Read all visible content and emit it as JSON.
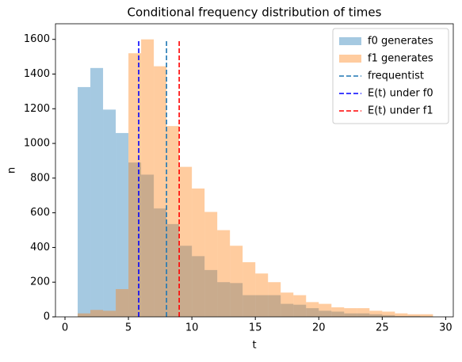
{
  "chart_data": {
    "type": "histogram",
    "title": "Conditional frequency distribution of times",
    "x_label": "t",
    "y_label": "n",
    "bins": [
      1,
      2,
      3,
      4,
      5,
      6,
      7,
      8,
      9,
      10,
      11,
      12,
      13,
      14,
      15,
      16,
      17,
      18,
      19,
      20,
      21,
      22,
      23,
      24,
      25,
      26,
      27,
      28,
      29
    ],
    "series": [
      {
        "name": "f0 generates",
        "color": "#1f77b4",
        "values": [
          1325,
          1435,
          1195,
          1060,
          890,
          820,
          625,
          535,
          410,
          350,
          270,
          200,
          195,
          125,
          125,
          125,
          75,
          70,
          50,
          35,
          30,
          20,
          20,
          15,
          10,
          5,
          5,
          3
        ]
      },
      {
        "name": "f1 generates",
        "color": "#ff7f0e",
        "values": [
          20,
          40,
          35,
          160,
          1520,
          1600,
          1445,
          1100,
          865,
          740,
          605,
          500,
          410,
          315,
          250,
          200,
          140,
          125,
          85,
          75,
          55,
          50,
          50,
          35,
          30,
          20,
          15,
          15
        ]
      }
    ],
    "vlines": [
      {
        "name": "frequentist",
        "color": "#1f77b4",
        "x": 8.0,
        "ymin": 0,
        "ymax": 1600
      },
      {
        "name": "E(t) under f0",
        "color": "blue",
        "x": 5.81,
        "ymin": 0,
        "ymax": 1600
      },
      {
        "name": "E(t) under f1",
        "color": "red",
        "x": 9.0,
        "ymin": 0,
        "ymax": 1600
      }
    ],
    "opacity": 0.4,
    "xlim": [
      -0.75,
      30.6
    ],
    "ylim": [
      0,
      1690
    ],
    "xticks": [
      0,
      5,
      10,
      15,
      20,
      25,
      30
    ],
    "yticks": [
      0,
      200,
      400,
      600,
      800,
      1000,
      1200,
      1400,
      1600
    ],
    "legend": "upper right"
  }
}
